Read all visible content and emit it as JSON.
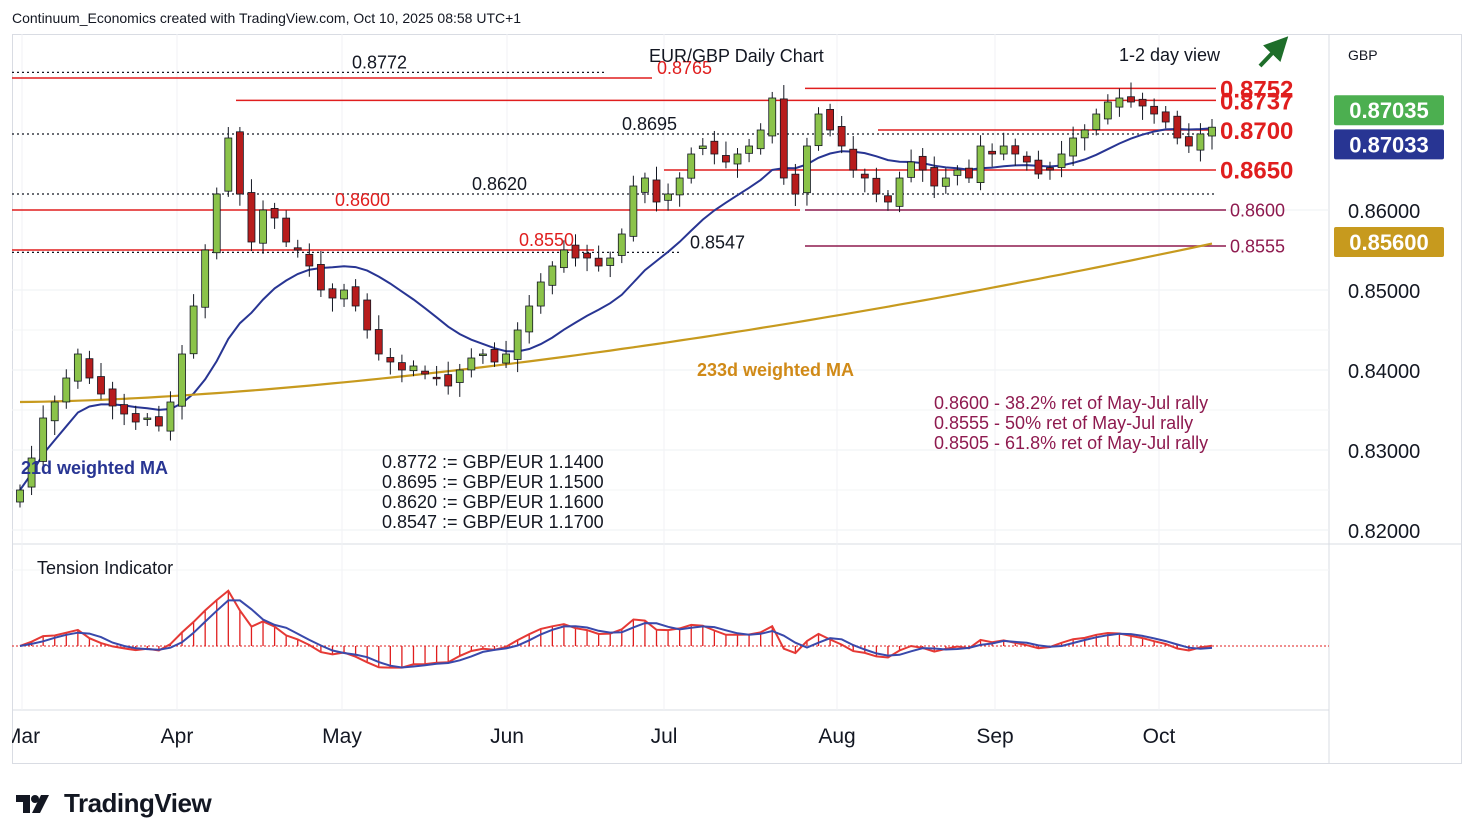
{
  "header": {
    "attribution": "Continuum_Economics created with TradingView.com, Oct 10, 2025 08:58 UTC+1"
  },
  "footer": {
    "brand": "TradingView"
  },
  "colors": {
    "red": "#e01e1e",
    "maroon": "#8e1a4f",
    "navy": "#283593",
    "gold": "#c79a1e",
    "green": "#4caf50",
    "candle_green": "#8bc34a",
    "candle_red": "#b71c1c",
    "dark": "#131722"
  },
  "chart_data": {
    "type": "candlestick",
    "title": "EUR/GBP Daily Chart",
    "view": "1-2 day view",
    "currency": "GBP",
    "y_axis": {
      "range": [
        0.8185,
        0.882
      ],
      "ticks": [
        "0.86000",
        "0.85000",
        "0.84000",
        "0.83000",
        "0.82000"
      ]
    },
    "x_axis": {
      "labels": [
        "Mar",
        "Apr",
        "May",
        "Jun",
        "Jul",
        "Aug",
        "Sep",
        "Oct"
      ]
    },
    "price_badges": [
      {
        "label": "0.87035",
        "value": 0.87035,
        "color": "#4caf50"
      },
      {
        "label": "0.87033",
        "value": 0.87033,
        "color": "#283593"
      },
      {
        "label": "0.85600",
        "value": 0.856,
        "color": "#c79a1e"
      }
    ],
    "resistance": [
      {
        "label": "0.8752",
        "value": 0.8752
      },
      {
        "label": "0.8737",
        "value": 0.8737
      },
      {
        "label": "0.8700",
        "value": 0.87
      }
    ],
    "support": [
      {
        "label": "0.8650",
        "value": 0.865
      },
      {
        "label": "0.8600",
        "value": 0.86
      },
      {
        "label": "0.8555",
        "value": 0.8555
      }
    ],
    "historic_levels": [
      {
        "label": "0.8772",
        "value": 0.8772,
        "style": "dotted"
      },
      {
        "label": "0.8765",
        "value": 0.8765,
        "style": "red"
      },
      {
        "label": "0.8695",
        "value": 0.8695,
        "style": "dotted"
      },
      {
        "label": "0.8620",
        "value": 0.862,
        "style": "dotted"
      },
      {
        "label": "0.8600",
        "value": 0.86,
        "style": "red"
      },
      {
        "label": "0.8550",
        "value": 0.855,
        "style": "red"
      },
      {
        "label": "0.8547",
        "value": 0.8547,
        "style": "dotted"
      }
    ],
    "ma_labels": {
      "ma21": "21d weighted MA",
      "ma233": "233d weighted MA"
    },
    "fib_notes": [
      "0.8600 - 38.2% ret of May-Jul rally",
      "0.8555 - 50% ret of May-Jul rally",
      "0.8505 - 61.8% ret of May-Jul rally"
    ],
    "conversion_notes": [
      "0.8772 := GBP/EUR 1.1400",
      "0.8695 := GBP/EUR 1.1500",
      "0.8620 := GBP/EUR 1.1600",
      "0.8547 := GBP/EUR 1.1700"
    ],
    "indicator": {
      "title": "Tension Indicator"
    },
    "close_path": [
      0.825,
      0.829,
      0.834,
      0.836,
      0.839,
      0.842,
      0.839,
      0.837,
      0.8355,
      0.8345,
      0.8335,
      0.834,
      0.833,
      0.836,
      0.842,
      0.848,
      0.855,
      0.862,
      0.869,
      0.862,
      0.856,
      0.86,
      0.859,
      0.856,
      0.855,
      0.853,
      0.85,
      0.849,
      0.85,
      0.848,
      0.845,
      0.842,
      0.841,
      0.84,
      0.8405,
      0.8395,
      0.839,
      0.838,
      0.84,
      0.8415,
      0.842,
      0.841,
      0.842,
      0.845,
      0.848,
      0.851,
      0.853,
      0.855,
      0.854,
      0.854,
      0.853,
      0.854,
      0.857,
      0.863,
      0.864,
      0.861,
      0.862,
      0.864,
      0.867,
      0.868,
      0.867,
      0.866,
      0.867,
      0.868,
      0.87,
      0.874,
      0.864,
      0.862,
      0.868,
      0.872,
      0.87,
      0.868,
      0.865,
      0.864,
      0.862,
      0.861,
      0.864,
      0.866,
      0.865,
      0.863,
      0.864,
      0.865,
      0.864,
      0.868,
      0.867,
      0.868,
      0.867,
      0.866,
      0.8645,
      0.865,
      0.867,
      0.869,
      0.87,
      0.872,
      0.8735,
      0.874,
      0.8735,
      0.873,
      0.872,
      0.871,
      0.869,
      0.868,
      0.8695,
      0.87035
    ]
  }
}
